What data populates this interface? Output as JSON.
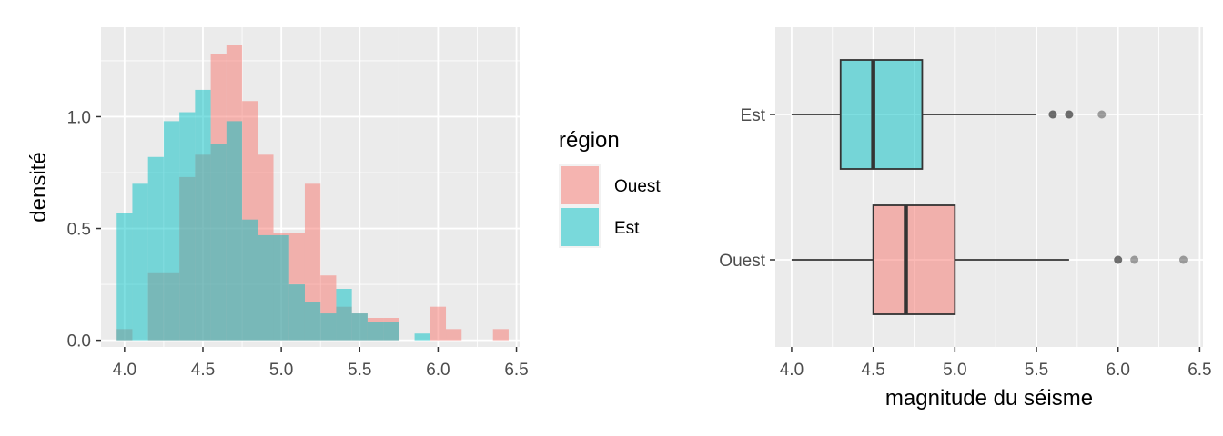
{
  "colors": {
    "ouest": "#F8766D",
    "est": "#00BFC4",
    "panel_bg": "#EBEBEB",
    "grid_major": "#FFFFFF",
    "tick_text": "#4D4D4D",
    "box_line": "#333333"
  },
  "chart_data": [
    {
      "type": "histogram",
      "xlabel": "",
      "ylabel": "densité",
      "xlim": [
        3.85,
        6.52
      ],
      "ylim": [
        -0.03,
        1.4
      ],
      "x_ticks": [
        "4.0",
        "4.5",
        "5.0",
        "5.5",
        "6.0",
        "6.5"
      ],
      "y_ticks": [
        "0.0",
        "0.5",
        "1.0"
      ],
      "bin_width": 0.1,
      "bin_edges": [
        3.95,
        4.05,
        4.15,
        4.25,
        4.35,
        4.45,
        4.55,
        4.65,
        4.75,
        4.85,
        4.95,
        5.05,
        5.15,
        5.25,
        5.35,
        5.45,
        5.55,
        5.65,
        5.75,
        5.85,
        5.95,
        6.05,
        6.15,
        6.25,
        6.35,
        6.45
      ],
      "series": [
        {
          "name": "Ouest",
          "density": [
            0.05,
            0,
            0.3,
            0.3,
            0.73,
            0.83,
            1.28,
            1.32,
            1.07,
            0.83,
            0.48,
            0.48,
            0.7,
            0.29,
            0.15,
            0.12,
            0.1,
            0.1,
            0,
            0,
            0.15,
            0.05,
            0,
            0,
            0.05
          ],
          "opacity": 0.5
        },
        {
          "name": "Est",
          "density": [
            0.57,
            0.7,
            0.82,
            0.98,
            1.02,
            1.12,
            0.88,
            0.98,
            0.54,
            0.47,
            0.47,
            0.25,
            0.17,
            0.12,
            0.23,
            0.12,
            0.08,
            0.08,
            0,
            0.03,
            0,
            0,
            0,
            0,
            0
          ],
          "opacity": 0.5
        }
      ],
      "legend": {
        "title": "région",
        "entries": [
          "Ouest",
          "Est"
        ],
        "placement": "right"
      },
      "grid": true
    },
    {
      "type": "boxplot",
      "orientation": "horizontal",
      "xlabel": "magnitude du séisme",
      "ylabel": "",
      "xlim": [
        3.9,
        6.52
      ],
      "x_ticks": [
        "4.0",
        "4.5",
        "5.0",
        "5.5",
        "6.0",
        "6.5"
      ],
      "categories": [
        "Ouest",
        "Est"
      ],
      "boxes": [
        {
          "name": "Ouest",
          "whisker_low": 4.0,
          "q1": 4.5,
          "median": 4.7,
          "q3": 5.0,
          "whisker_high": 5.7,
          "outliers": [
            6.0,
            6.0,
            6.1,
            6.4
          ]
        },
        {
          "name": "Est",
          "whisker_low": 4.0,
          "q1": 4.3,
          "median": 4.5,
          "q3": 4.8,
          "whisker_high": 5.5,
          "outliers": [
            5.6,
            5.6,
            5.7,
            5.7,
            5.9
          ]
        }
      ],
      "grid": true
    }
  ]
}
